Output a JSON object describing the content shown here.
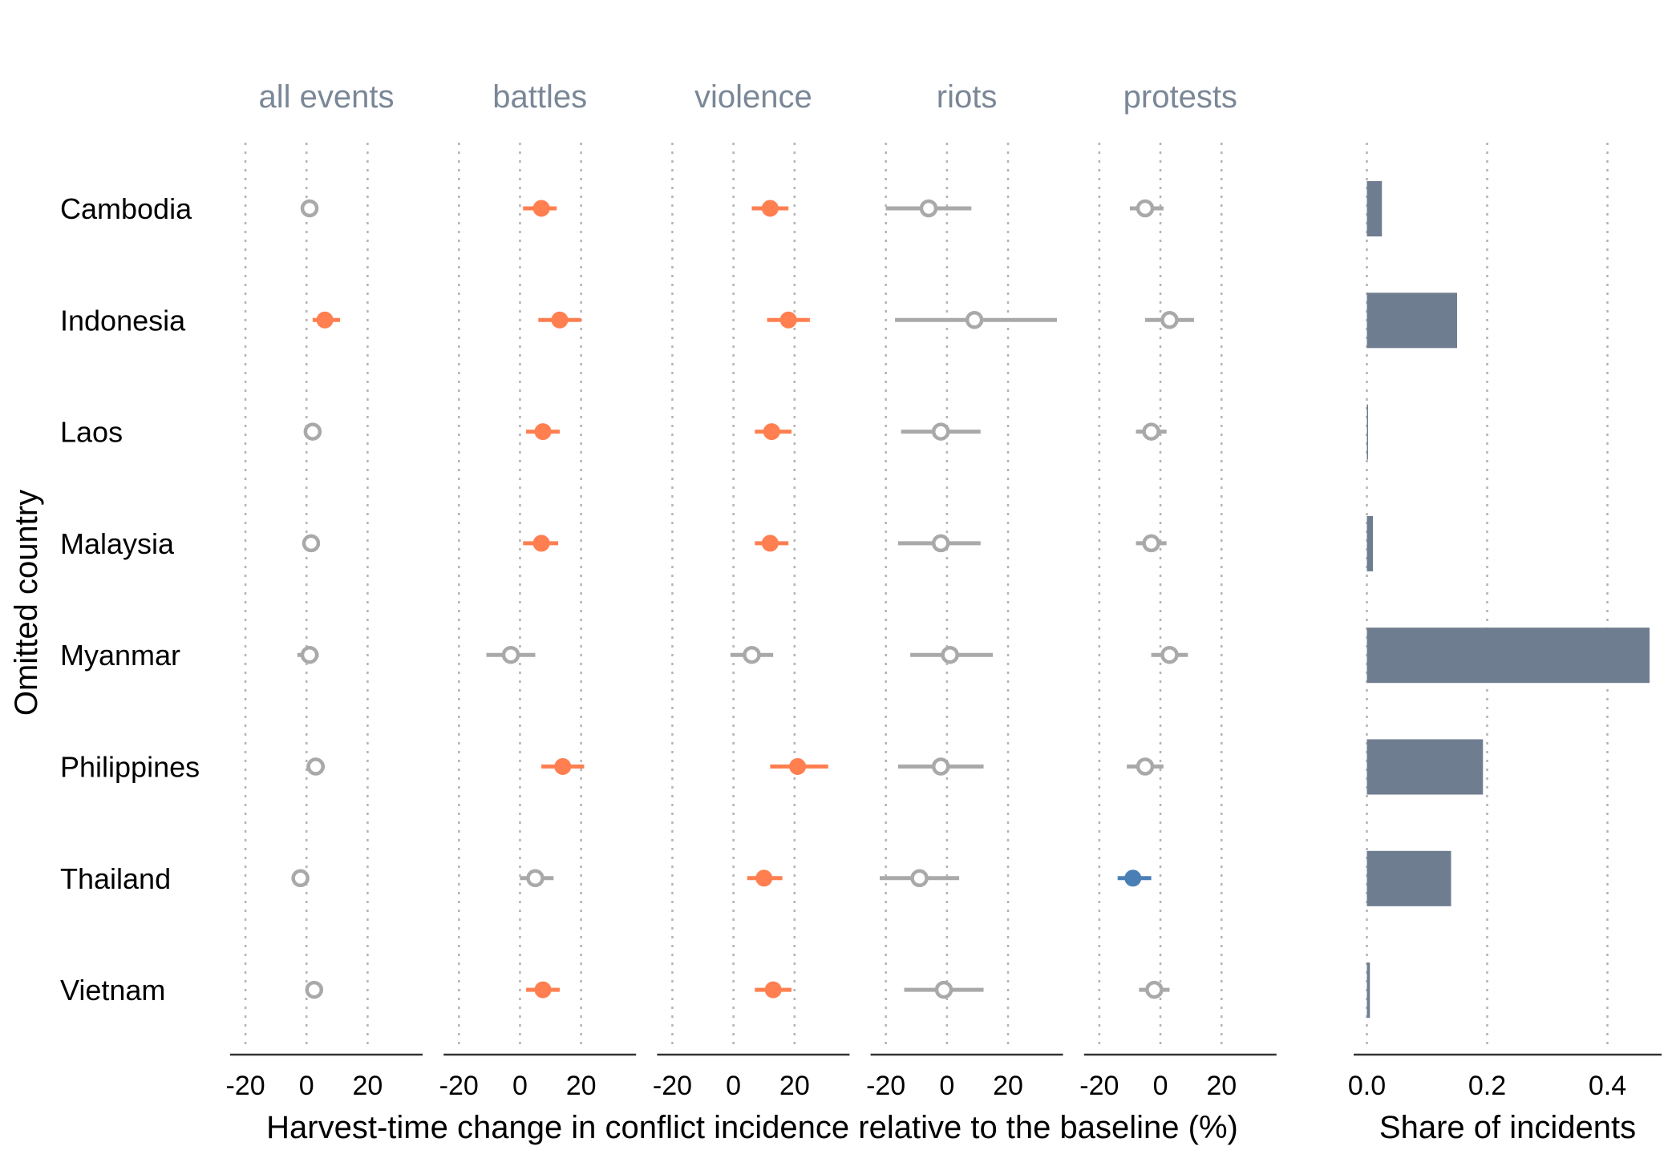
{
  "chart_data": [
    {
      "type": "scatter",
      "subtype": "point-range (dot-and-whisker) small multiples",
      "ylabel": "Omitted country",
      "xlabel": "Harvest-time change in conflict incidence relative to the baseline (%)",
      "x_ticks": [
        "-20",
        "0",
        "20"
      ],
      "x_tick_values": [
        -20,
        0,
        20
      ],
      "xlim": [
        -25,
        38
      ],
      "grid": "vertical dotted lines at -20, 0, 20",
      "countries": [
        "Cambodia",
        "Indonesia",
        "Laos",
        "Malaysia",
        "Myanmar",
        "Philippines",
        "Thailand",
        "Vietnam"
      ],
      "status_colors": {
        "positive_significant": "#ff7f50",
        "negative_significant": "#4a7fb5",
        "not_significant": "#a9a9a9"
      },
      "facets": [
        {
          "title": "all events",
          "estimates": [
            {
              "country": "Cambodia",
              "estimate": 1,
              "low": 1,
              "high": 1,
              "status": "not_significant"
            },
            {
              "country": "Indonesia",
              "estimate": 6,
              "low": 2,
              "high": 11,
              "status": "positive_significant"
            },
            {
              "country": "Laos",
              "estimate": 2,
              "low": 2,
              "high": 2,
              "status": "not_significant"
            },
            {
              "country": "Malaysia",
              "estimate": 1.5,
              "low": 1.5,
              "high": 1.5,
              "status": "not_significant"
            },
            {
              "country": "Myanmar",
              "estimate": 1,
              "low": -3,
              "high": 4,
              "status": "not_significant"
            },
            {
              "country": "Philippines",
              "estimate": 3,
              "low": 0,
              "high": 6,
              "status": "not_significant"
            },
            {
              "country": "Thailand",
              "estimate": -2,
              "low": -2,
              "high": -2,
              "status": "not_significant"
            },
            {
              "country": "Vietnam",
              "estimate": 2.5,
              "low": 2.5,
              "high": 2.5,
              "status": "not_significant"
            }
          ]
        },
        {
          "title": "battles",
          "estimates": [
            {
              "country": "Cambodia",
              "estimate": 7,
              "low": 1,
              "high": 12,
              "status": "positive_significant"
            },
            {
              "country": "Indonesia",
              "estimate": 13,
              "low": 6,
              "high": 20,
              "status": "positive_significant"
            },
            {
              "country": "Laos",
              "estimate": 7.5,
              "low": 2,
              "high": 13,
              "status": "positive_significant"
            },
            {
              "country": "Malaysia",
              "estimate": 7,
              "low": 1,
              "high": 12.5,
              "status": "positive_significant"
            },
            {
              "country": "Myanmar",
              "estimate": -3,
              "low": -11,
              "high": 5,
              "status": "not_significant"
            },
            {
              "country": "Philippines",
              "estimate": 14,
              "low": 7,
              "high": 21,
              "status": "positive_significant"
            },
            {
              "country": "Thailand",
              "estimate": 5,
              "low": 0,
              "high": 11,
              "status": "not_significant"
            },
            {
              "country": "Vietnam",
              "estimate": 7.5,
              "low": 2,
              "high": 13,
              "status": "positive_significant"
            }
          ]
        },
        {
          "title": "violence",
          "estimates": [
            {
              "country": "Cambodia",
              "estimate": 12,
              "low": 6,
              "high": 18,
              "status": "positive_significant"
            },
            {
              "country": "Indonesia",
              "estimate": 18,
              "low": 11,
              "high": 25,
              "status": "positive_significant"
            },
            {
              "country": "Laos",
              "estimate": 12.5,
              "low": 7,
              "high": 19,
              "status": "positive_significant"
            },
            {
              "country": "Malaysia",
              "estimate": 12,
              "low": 7,
              "high": 18,
              "status": "positive_significant"
            },
            {
              "country": "Myanmar",
              "estimate": 6,
              "low": -1,
              "high": 13,
              "status": "not_significant"
            },
            {
              "country": "Philippines",
              "estimate": 21,
              "low": 12,
              "high": 31,
              "status": "positive_significant"
            },
            {
              "country": "Thailand",
              "estimate": 10,
              "low": 4.5,
              "high": 16,
              "status": "positive_significant"
            },
            {
              "country": "Vietnam",
              "estimate": 13,
              "low": 7,
              "high": 19,
              "status": "positive_significant"
            }
          ]
        },
        {
          "title": "riots",
          "estimates": [
            {
              "country": "Cambodia",
              "estimate": -6,
              "low": -20,
              "high": 8,
              "status": "not_significant"
            },
            {
              "country": "Indonesia",
              "estimate": 9,
              "low": -17,
              "high": 36,
              "status": "not_significant"
            },
            {
              "country": "Laos",
              "estimate": -2,
              "low": -15,
              "high": 11,
              "status": "not_significant"
            },
            {
              "country": "Malaysia",
              "estimate": -2,
              "low": -16,
              "high": 11,
              "status": "not_significant"
            },
            {
              "country": "Myanmar",
              "estimate": 1,
              "low": -12,
              "high": 15,
              "status": "not_significant"
            },
            {
              "country": "Philippines",
              "estimate": -2,
              "low": -16,
              "high": 12,
              "status": "not_significant"
            },
            {
              "country": "Thailand",
              "estimate": -9,
              "low": -22,
              "high": 4,
              "status": "not_significant"
            },
            {
              "country": "Vietnam",
              "estimate": -1,
              "low": -14,
              "high": 12,
              "status": "not_significant"
            }
          ]
        },
        {
          "title": "protests",
          "estimates": [
            {
              "country": "Cambodia",
              "estimate": -5,
              "low": -10,
              "high": 1,
              "status": "not_significant"
            },
            {
              "country": "Indonesia",
              "estimate": 3,
              "low": -5,
              "high": 11,
              "status": "not_significant"
            },
            {
              "country": "Laos",
              "estimate": -3,
              "low": -8,
              "high": 2,
              "status": "not_significant"
            },
            {
              "country": "Malaysia",
              "estimate": -3,
              "low": -8,
              "high": 2,
              "status": "not_significant"
            },
            {
              "country": "Myanmar",
              "estimate": 3,
              "low": -3,
              "high": 9,
              "status": "not_significant"
            },
            {
              "country": "Philippines",
              "estimate": -5,
              "low": -11,
              "high": 1,
              "status": "not_significant"
            },
            {
              "country": "Thailand",
              "estimate": -9,
              "low": -14,
              "high": -3,
              "status": "negative_significant"
            },
            {
              "country": "Vietnam",
              "estimate": -2,
              "low": -7,
              "high": 3,
              "status": "not_significant"
            }
          ]
        }
      ]
    },
    {
      "type": "bar",
      "orientation": "horizontal",
      "xlabel": "Share of incidents",
      "categories": [
        "Cambodia",
        "Indonesia",
        "Laos",
        "Malaysia",
        "Myanmar",
        "Philippines",
        "Thailand",
        "Vietnam"
      ],
      "values": [
        0.025,
        0.15,
        0.001,
        0.01,
        0.47,
        0.193,
        0.14,
        0.005
      ],
      "x_ticks": [
        "0.0",
        "0.2",
        "0.4"
      ],
      "x_tick_values": [
        0,
        0.2,
        0.4
      ],
      "xlim": [
        -0.022,
        0.49
      ],
      "grid": "vertical dotted lines at 0.0, 0.2, 0.4",
      "bar_color": "#6e7d8f"
    }
  ]
}
